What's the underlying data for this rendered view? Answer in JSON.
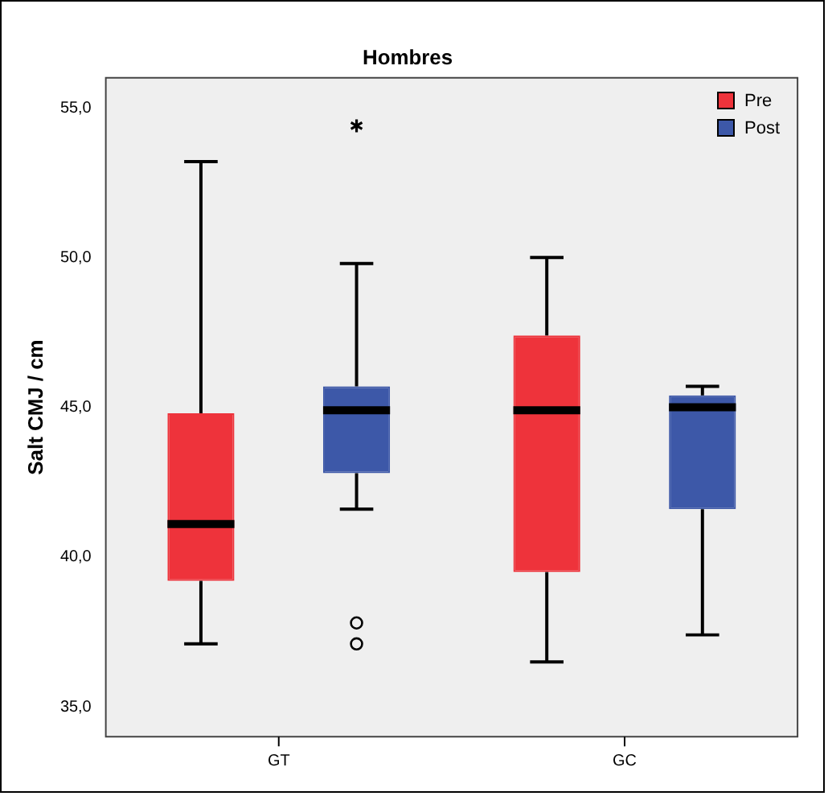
{
  "chart_data": {
    "type": "box",
    "title": "Hombres",
    "ylabel": "Salt CMJ / cm",
    "categories": [
      "GT",
      "GC"
    ],
    "series": [
      {
        "name": "Pre",
        "color": "#ee333b",
        "boxes": [
          {
            "low": 37.1,
            "q1": 39.2,
            "median": 41.1,
            "q3": 44.8,
            "high": 53.2
          },
          {
            "low": 36.5,
            "q1": 39.5,
            "median": 44.9,
            "q3": 47.4,
            "high": 50.0
          }
        ]
      },
      {
        "name": "Post",
        "color": "#3d58a8",
        "boxes": [
          {
            "low": 41.6,
            "q1": 42.8,
            "median": 44.9,
            "q3": 45.7,
            "high": 49.8,
            "outliers": [
              37.8,
              37.1,
              54.4
            ]
          },
          {
            "low": 37.4,
            "q1": 41.6,
            "median": 45.0,
            "q3": 45.4,
            "high": 45.7
          }
        ]
      }
    ],
    "ylim": [
      34,
      56
    ],
    "yticks": [
      {
        "value": 35,
        "label": "35,0"
      },
      {
        "value": 40,
        "label": "40,0"
      },
      {
        "value": 45,
        "label": "45,0"
      },
      {
        "value": 50,
        "label": "50,0"
      },
      {
        "value": 55,
        "label": "55,0"
      }
    ],
    "grid": false,
    "legend": "top right"
  }
}
